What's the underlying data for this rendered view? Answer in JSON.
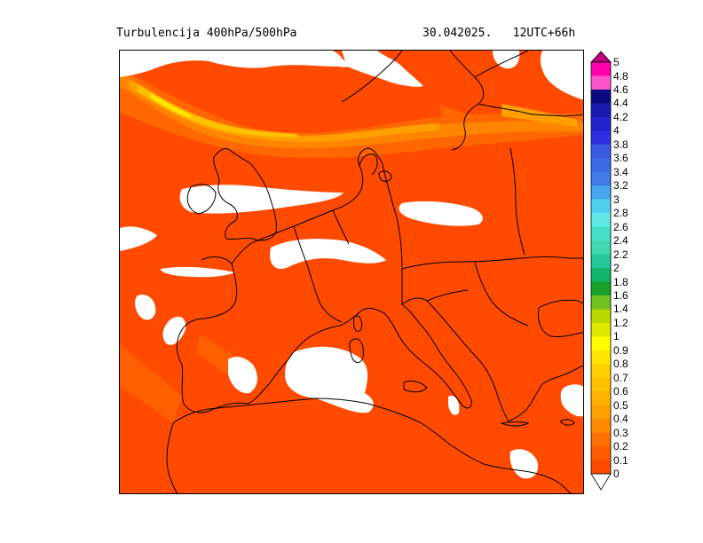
{
  "header": {
    "title_left": "Turbulencija 400hPa/500hPa",
    "title_right": "30.042025.   12UTC+66h"
  },
  "map": {
    "field": "turbulence",
    "background_color": "#ff4a00",
    "coastline_color": "#000000"
  },
  "legend": {
    "labels": [
      "5",
      "4.8",
      "4.6",
      "4.4",
      "4.2",
      "4",
      "3.8",
      "3.6",
      "3.4",
      "3.2",
      "3",
      "2.8",
      "2.6",
      "2.4",
      "2.2",
      "2",
      "1.8",
      "1.6",
      "1.4",
      "1.2",
      "1",
      "0.9",
      "0.8",
      "0.7",
      "0.6",
      "0.5",
      "0.4",
      "0.3",
      "0.2",
      "0.1",
      "0"
    ],
    "colors": [
      "#ff00aa",
      "#ff55cc",
      "#0a0a80",
      "#1a1ab0",
      "#2222cc",
      "#2f2fe0",
      "#3a5ae0",
      "#3a6ae6",
      "#3f7ae8",
      "#48a6ee",
      "#50d0f0",
      "#5ee8e8",
      "#46e0c8",
      "#40d8b0",
      "#24c89a",
      "#10b46a",
      "#18a028",
      "#70c020",
      "#b8d800",
      "#e0e800",
      "#ffff00",
      "#ffe600",
      "#ffd000",
      "#ffc000",
      "#ffb000",
      "#ffa000",
      "#ff8a00",
      "#ff7000",
      "#ff5a00",
      "#ff4a00"
    ]
  }
}
